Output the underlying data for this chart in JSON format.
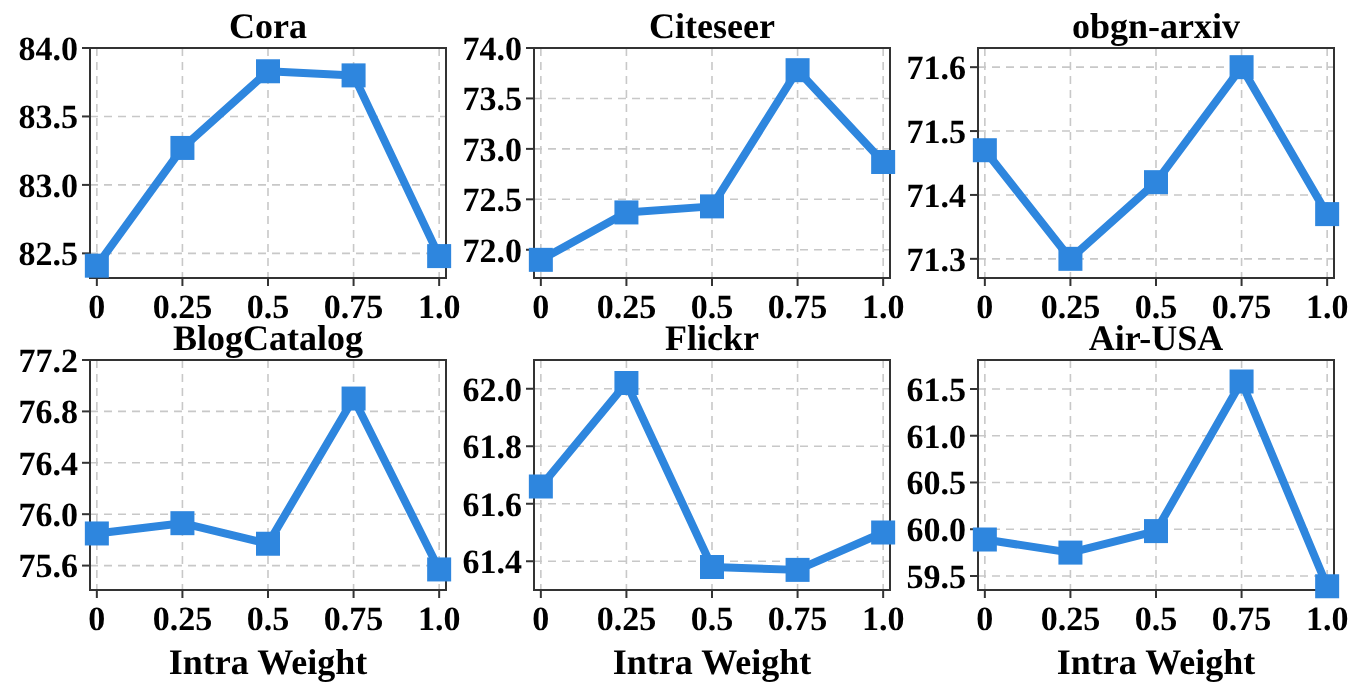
{
  "chart_data": [
    {
      "type": "line",
      "title": "Cora",
      "categories": [
        "0",
        "0.25",
        "0.5",
        "0.75",
        "1.0"
      ],
      "series": [
        {
          "color": "#2e86de",
          "values": [
            82.41,
            83.27,
            83.83,
            83.8,
            82.48
          ]
        }
      ],
      "ylim": [
        82.32,
        84.0
      ],
      "yticks": [
        {
          "value": 82.5,
          "label": "82.5"
        },
        {
          "value": 83,
          "label": "83.0"
        },
        {
          "value": 83.5,
          "label": "83.5"
        },
        {
          "value": 84,
          "label": "84.0"
        }
      ],
      "grid": true,
      "marker": "square",
      "line_style": "solid"
    },
    {
      "type": "line",
      "title": "Citeseer",
      "categories": [
        "0",
        "0.25",
        "0.5",
        "0.75",
        "1.0"
      ],
      "series": [
        {
          "color": "#2e86de",
          "values": [
            71.9,
            72.37,
            72.43,
            73.78,
            72.87
          ]
        }
      ],
      "ylim": [
        71.72,
        74.0
      ],
      "yticks": [
        {
          "value": 72,
          "label": "72.0"
        },
        {
          "value": 72.5,
          "label": "72.5"
        },
        {
          "value": 73,
          "label": "73.0"
        },
        {
          "value": 73.5,
          "label": "73.5"
        },
        {
          "value": 74,
          "label": "74.0"
        }
      ],
      "grid": true,
      "marker": "square",
      "line_style": "solid"
    },
    {
      "type": "line",
      "title": "obgn-arxiv",
      "categories": [
        "0",
        "0.25",
        "0.5",
        "0.75",
        "1.0"
      ],
      "series": [
        {
          "color": "#2e86de",
          "values": [
            71.47,
            71.3,
            71.42,
            71.6,
            71.37
          ]
        }
      ],
      "ylim": [
        71.27,
        71.63
      ],
      "yticks": [
        71.3,
        71.4,
        71.5,
        71.6
      ],
      "grid": true,
      "marker": "square",
      "line_style": "solid"
    },
    {
      "type": "line",
      "title": "BlogCatalog",
      "xlabel": "Intra Weight",
      "categories": [
        "0",
        "0.25",
        "0.5",
        "0.75",
        "1.0"
      ],
      "series": [
        {
          "color": "#2e86de",
          "values": [
            75.85,
            75.93,
            75.77,
            76.9,
            75.57
          ]
        }
      ],
      "ylim": [
        75.41,
        77.2
      ],
      "yticks": [
        75.6,
        {
          "value": 76,
          "label": "76.0"
        },
        76.4,
        76.8,
        77.2
      ],
      "grid": true,
      "marker": "square",
      "line_style": "solid"
    },
    {
      "type": "line",
      "title": "Flickr",
      "xlabel": "Intra Weight",
      "categories": [
        "0",
        "0.25",
        "0.5",
        "0.75",
        "1.0"
      ],
      "series": [
        {
          "color": "#2e86de",
          "values": [
            61.66,
            62.02,
            61.38,
            61.37,
            61.5
          ]
        }
      ],
      "ylim": [
        61.3,
        62.1
      ],
      "yticks": [
        61.4,
        61.6,
        61.8,
        {
          "value": 62,
          "label": "62.0"
        }
      ],
      "grid": true,
      "marker": "square",
      "line_style": "solid"
    },
    {
      "type": "line",
      "title": "Air-USA",
      "xlabel": "Intra Weight",
      "categories": [
        "0",
        "0.25",
        "0.5",
        "0.75",
        "1.0"
      ],
      "series": [
        {
          "color": "#2e86de",
          "values": [
            59.89,
            59.75,
            59.98,
            61.58,
            59.39
          ]
        }
      ],
      "ylim": [
        59.35,
        61.81
      ],
      "yticks": [
        59.5,
        {
          "value": 60,
          "label": "60.0"
        },
        60.5,
        {
          "value": 61,
          "label": "61.0"
        },
        61.5
      ],
      "grid": true,
      "marker": "square",
      "line_style": "solid"
    }
  ]
}
